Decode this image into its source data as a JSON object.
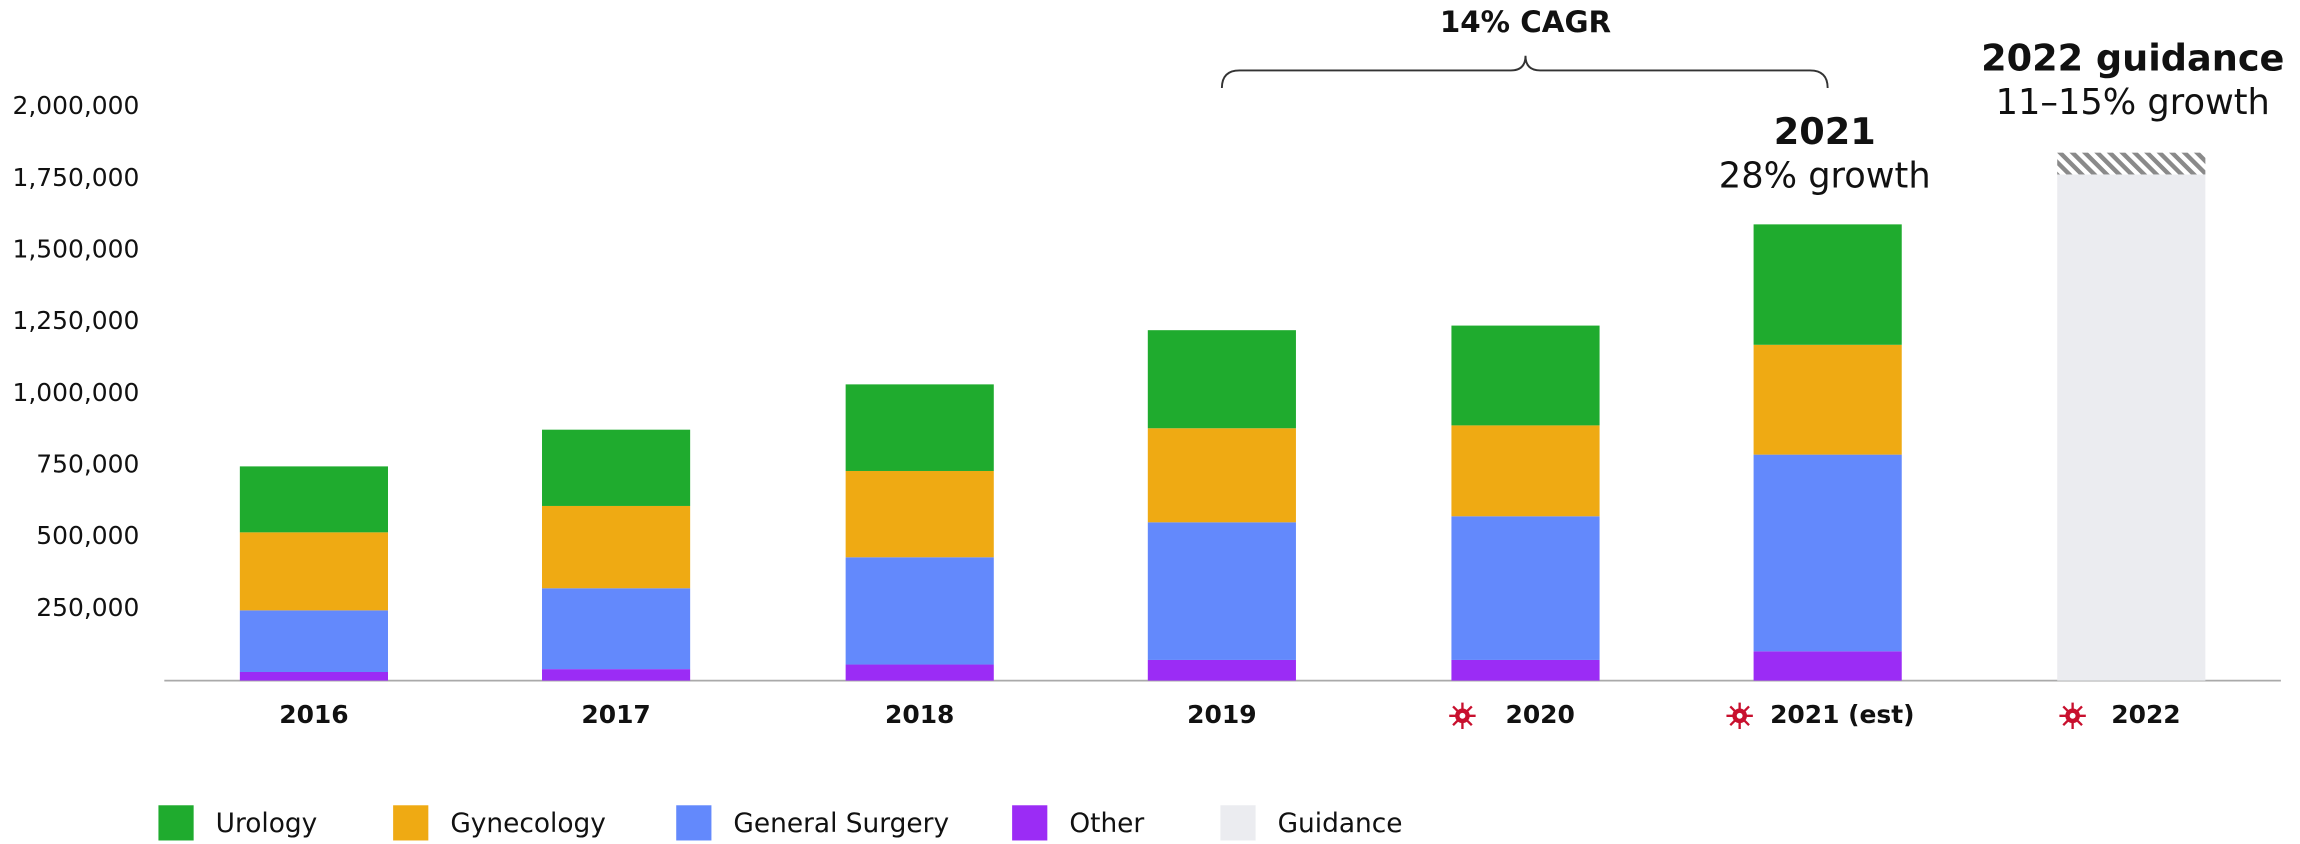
{
  "chart_data": {
    "type": "stacked_bar",
    "categories": [
      "2016",
      "2017",
      "2018",
      "2019",
      "2020",
      "2021 (est)",
      "2022"
    ],
    "series": [
      {
        "name": "Other",
        "color": "#9b2cf5",
        "values": [
          30000,
          40000,
          56000,
          72000,
          72000,
          102000,
          null
        ]
      },
      {
        "name": "General Surgery",
        "color": "#6389fc",
        "values": [
          215000,
          282000,
          374000,
          480000,
          501000,
          686000,
          null
        ]
      },
      {
        "name": "Gynecology",
        "color": "#efaa13",
        "values": [
          272000,
          287000,
          301000,
          328000,
          317000,
          383000,
          null
        ]
      },
      {
        "name": "Urology",
        "color": "#1fab2e",
        "values": [
          230000,
          266000,
          302000,
          342000,
          348000,
          420000,
          null
        ]
      },
      {
        "name": "Guidance",
        "color": "#ebecf0",
        "values": [
          null,
          null,
          null,
          null,
          null,
          null,
          1765000
        ],
        "high": [
          null,
          null,
          null,
          null,
          null,
          null,
          1841000
        ]
      }
    ],
    "legend_order": [
      3,
      2,
      1,
      0,
      4
    ],
    "ylim": [
      0,
      2000000
    ],
    "yticks": [
      {
        "value": 250000,
        "label": "250,000"
      },
      {
        "value": 500000,
        "label": "500,000"
      },
      {
        "value": 750000,
        "label": "750,000"
      },
      {
        "value": 1000000,
        "label": "1,000,000"
      },
      {
        "value": 1250000,
        "label": "1,250,000"
      },
      {
        "value": 1500000,
        "label": "1,500,000"
      },
      {
        "value": 1750000,
        "label": "1,750,000"
      },
      {
        "value": 2000000,
        "label": "2,000,000"
      }
    ],
    "grid": false,
    "annotations": {
      "cagr": "14% CAGR",
      "y2021_title": "2021",
      "y2021_sub": "28% growth",
      "guidance_title": "2022 guidance",
      "guidance_sub": "11–15% growth"
    }
  }
}
